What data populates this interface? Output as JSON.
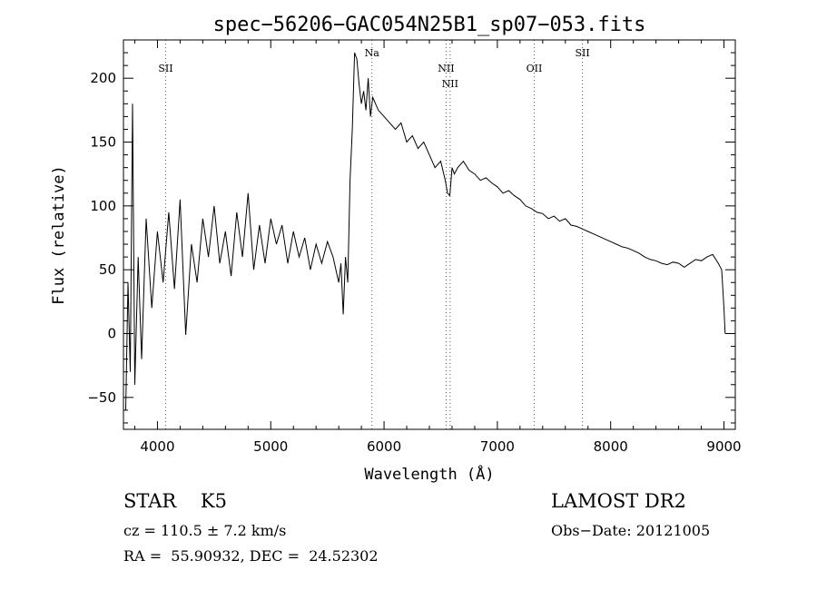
{
  "chart_data": {
    "type": "line",
    "title": "spec−56206−GAC054N25B1_sp07−053.fits",
    "xlabel": "Wavelength (Å)",
    "ylabel": "Flux (relative)",
    "xlim": [
      3700,
      9100
    ],
    "ylim": [
      -75,
      230
    ],
    "xticks": [
      4000,
      5000,
      6000,
      7000,
      8000,
      9000
    ],
    "yticks": [
      -50,
      0,
      50,
      100,
      150,
      200
    ],
    "ytick_labels": [
      "−50",
      "0",
      "50",
      "100",
      "150",
      "200"
    ],
    "grid": false,
    "series": [
      {
        "x": [
          3720,
          3740,
          3760,
          3780,
          3800,
          3830,
          3860,
          3900,
          3950,
          4000,
          4050,
          4100,
          4150,
          4200,
          4250,
          4300,
          4350,
          4400,
          4450,
          4500,
          4550,
          4600,
          4650,
          4700,
          4750,
          4800,
          4850,
          4900,
          4950,
          5000,
          5050,
          5100,
          5150,
          5200,
          5250,
          5300,
          5350,
          5400,
          5450,
          5500,
          5550,
          5600,
          5620,
          5640,
          5660,
          5680,
          5700,
          5720,
          5740,
          5760,
          5780,
          5800,
          5820,
          5840,
          5860,
          5880,
          5900,
          5950,
          6000,
          6050,
          6100,
          6150,
          6200,
          6250,
          6300,
          6350,
          6400,
          6450,
          6500,
          6540,
          6560,
          6580,
          6600,
          6620,
          6650,
          6700,
          6750,
          6800,
          6850,
          6900,
          6950,
          7000,
          7050,
          7100,
          7150,
          7200,
          7250,
          7300,
          7350,
          7400,
          7450,
          7500,
          7550,
          7600,
          7650,
          7700,
          7750,
          7800,
          7850,
          7900,
          7950,
          8000,
          8050,
          8100,
          8150,
          8200,
          8250,
          8300,
          8350,
          8400,
          8450,
          8500,
          8550,
          8600,
          8650,
          8700,
          8750,
          8800,
          8850,
          8900,
          8950,
          8980,
          9000,
          9010
        ],
        "y": [
          -60,
          40,
          -30,
          180,
          -40,
          60,
          -20,
          90,
          20,
          80,
          40,
          95,
          35,
          105,
          -1,
          70,
          40,
          90,
          60,
          100,
          55,
          80,
          45,
          95,
          60,
          110,
          50,
          85,
          55,
          90,
          70,
          85,
          55,
          80,
          60,
          75,
          50,
          70,
          55,
          72,
          60,
          40,
          55,
          15,
          60,
          40,
          120,
          160,
          220,
          215,
          195,
          180,
          190,
          175,
          200,
          170,
          185,
          175,
          170,
          165,
          160,
          165,
          150,
          155,
          145,
          150,
          140,
          130,
          135,
          120,
          110,
          108,
          130,
          125,
          130,
          135,
          128,
          125,
          120,
          122,
          118,
          115,
          110,
          112,
          108,
          105,
          100,
          98,
          95,
          94,
          90,
          92,
          88,
          90,
          85,
          84,
          82,
          80,
          78,
          76,
          74,
          72,
          70,
          68,
          67,
          65,
          63,
          60,
          58,
          57,
          55,
          54,
          56,
          55,
          52,
          55,
          58,
          57,
          60,
          62,
          55,
          50,
          20,
          0
        ]
      }
    ],
    "lines": [
      {
        "label": "SII",
        "x": 4072,
        "row": "low"
      },
      {
        "label": "Na",
        "x": 5893,
        "row": "high"
      },
      {
        "label": "NII",
        "x": 6548,
        "row": "low"
      },
      {
        "label": "NII",
        "x": 6583,
        "row": "mid"
      },
      {
        "label": "OII",
        "x": 7325,
        "row": "low"
      },
      {
        "label": "SII",
        "x": 7751,
        "row": "high"
      }
    ]
  },
  "info": {
    "object_line": "STAR    K5",
    "survey": "LAMOST DR2",
    "cz": "cz = 110.5 ± 7.2 km/s",
    "obs_date": "Obs−Date: 20121005",
    "radec": "RA =  55.90932, DEC =  24.52302"
  }
}
